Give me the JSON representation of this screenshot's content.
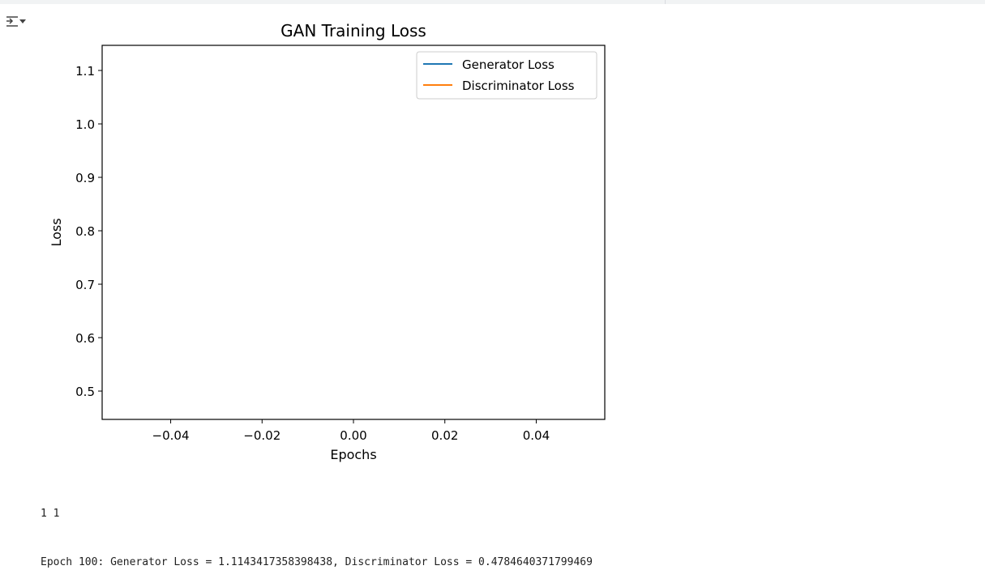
{
  "toolbar": {
    "output_toggle_icon": "collapse-output-icon"
  },
  "chart_data": {
    "type": "line",
    "title": "GAN Training Loss",
    "xlabel": "Epochs",
    "ylabel": "Loss",
    "xlim": [
      -0.055,
      0.055
    ],
    "ylim": [
      0.447,
      1.147
    ],
    "xticks": [
      -0.04,
      -0.02,
      0.0,
      0.02,
      0.04
    ],
    "xtick_labels": [
      "−0.04",
      "−0.02",
      "0.00",
      "0.02",
      "0.04"
    ],
    "yticks": [
      0.5,
      0.6,
      0.7,
      0.8,
      0.9,
      1.0,
      1.1
    ],
    "ytick_labels": [
      "0.5",
      "0.6",
      "0.7",
      "0.8",
      "0.9",
      "1.0",
      "1.1"
    ],
    "grid": false,
    "legend_position": "top-right",
    "series": [
      {
        "name": "Generator Loss",
        "color": "#1f77b4",
        "x": [
          0
        ],
        "y": [
          1.1143417358398438
        ]
      },
      {
        "name": "Discriminator Loss",
        "color": "#ff7f0e",
        "x": [
          0
        ],
        "y": [
          0.4784640371799469
        ]
      }
    ]
  },
  "output": {
    "lines": [
      "1 1",
      "Epoch 100: Generator Loss = 1.1143417358398438, Discriminator Loss = 0.4784640371799469"
    ]
  }
}
